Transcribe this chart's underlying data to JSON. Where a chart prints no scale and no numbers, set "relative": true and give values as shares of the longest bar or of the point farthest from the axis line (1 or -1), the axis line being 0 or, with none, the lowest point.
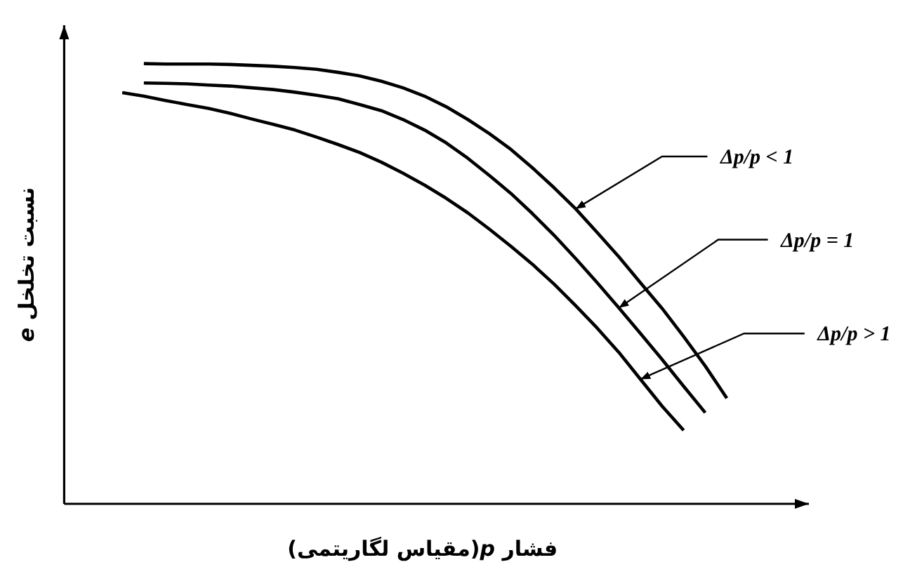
{
  "chart_data": {
    "type": "line",
    "xlabel": "فشار *p*(مقیاس لگاریتمی)",
    "ylabel": "نسبت تخلخل *e*",
    "relative": true,
    "marker": "none",
    "line_style": "solid",
    "categories": [
      null,
      null,
      null,
      null,
      null,
      null,
      null,
      null,
      null,
      null,
      null,
      null,
      null,
      null,
      null,
      null,
      null,
      null,
      null,
      null,
      null,
      null,
      null,
      null,
      null,
      null,
      null,
      null,
      null
    ],
    "series": [
      {
        "name": "Δp/p < 1",
        "color": "#000000",
        "values": [
          null,
          1.0,
          0.999,
          0.999,
          0.999,
          0.998,
          0.996,
          0.994,
          0.991,
          0.987,
          0.98,
          0.972,
          0.96,
          0.945,
          0.926,
          0.902,
          0.873,
          0.841,
          0.805,
          0.763,
          0.718,
          0.67,
          0.616,
          0.561,
          0.502,
          0.444,
          0.38,
          0.313,
          0.24
        ]
      },
      {
        "name": "Δp/p = 1",
        "color": "#000000",
        "values": [
          null,
          0.956,
          0.955,
          0.954,
          0.951,
          0.949,
          0.945,
          0.941,
          0.935,
          0.928,
          0.92,
          0.907,
          0.893,
          0.873,
          0.849,
          0.82,
          0.785,
          0.746,
          0.705,
          0.659,
          0.61,
          0.557,
          0.502,
          0.445,
          0.387,
          0.328,
          0.267,
          0.207,
          null
        ]
      },
      {
        "name": "Δp/p > 1",
        "color": "#000000",
        "values": [
          0.934,
          0.926,
          0.916,
          0.907,
          0.898,
          0.887,
          0.874,
          0.862,
          0.849,
          0.833,
          0.816,
          0.798,
          0.776,
          0.751,
          0.724,
          0.694,
          0.661,
          0.624,
          0.585,
          0.544,
          0.499,
          0.45,
          0.399,
          0.344,
          0.283,
          0.222,
          0.167,
          null,
          null
        ]
      }
    ]
  }
}
